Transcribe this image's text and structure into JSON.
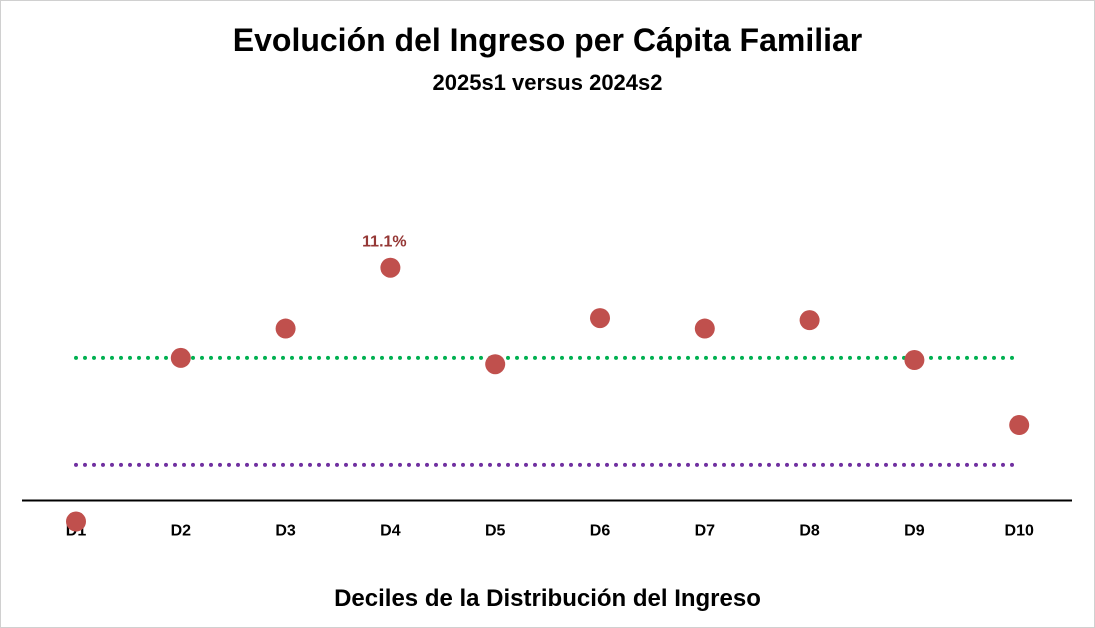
{
  "chart_data": {
    "type": "scatter",
    "title": "Evolución del Ingreso per Cápita Familiar",
    "subtitle": "2025s1 versus 2024s2",
    "xlabel": "Deciles de la Distribución del Ingreso",
    "ylabel": "",
    "categories": [
      "D1",
      "D2",
      "D3",
      "D4",
      "D5",
      "D6",
      "D7",
      "D8",
      "D9",
      "D10"
    ],
    "series": [
      {
        "values": [
          -1.0,
          6.8,
          8.2,
          11.1,
          6.5,
          8.7,
          8.2,
          8.6,
          6.7,
          3.6
        ],
        "color": "#c0504d"
      }
    ],
    "reference_lines": [
      {
        "value": 6.8,
        "color": "#00b050",
        "style": "dotted"
      },
      {
        "value": 1.7,
        "color": "#7030a0",
        "style": "dotted"
      }
    ],
    "data_labels": [
      {
        "category": "D4",
        "text": "11.1%",
        "color": "#953735"
      }
    ],
    "ylim": [
      -1.5,
      17
    ],
    "grid": false,
    "legend": "none"
  }
}
